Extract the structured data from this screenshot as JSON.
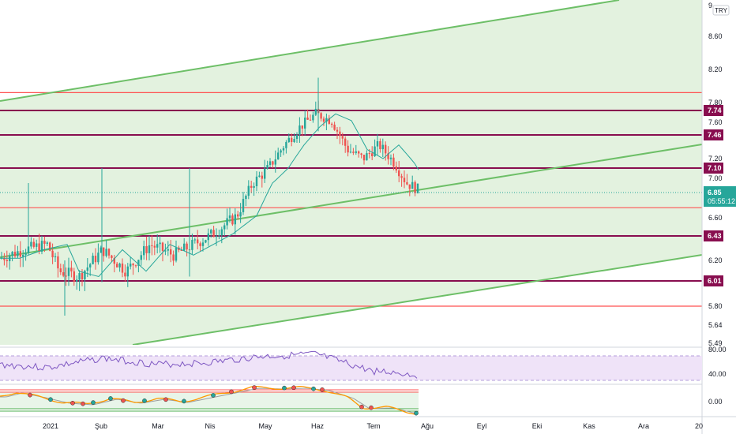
{
  "currency_badge": "TRY",
  "colors": {
    "channel_line": "#6dbf67",
    "channel_fill": "#e3f2df",
    "support_red": "#ff5252",
    "level_maroon": "#880e4f",
    "ma_line": "#26a69a",
    "candle_up": "#26a69a",
    "candle_down": "#ef5350",
    "price_badge": "#26a69a",
    "rsi_line": "#7e57c2",
    "rsi_band": "#efe3f8",
    "osc_band": "#e8f5e9",
    "osc_fast": "#ff9800",
    "osc_slow": "#9e9e9e"
  },
  "price_axis": {
    "top_label": "9.",
    "labels": [
      "8.60",
      "8.20",
      "7.80",
      "7.60",
      "7.20",
      "7.00",
      "6.60",
      "6.20",
      "5.80",
      "5.64",
      "5.49"
    ]
  },
  "levels": [
    {
      "label": "7.74",
      "value": 7.74
    },
    {
      "label": "7.46",
      "value": 7.46
    },
    {
      "label": "7.10",
      "value": 7.1
    },
    {
      "label": "6.43",
      "value": 6.43
    },
    {
      "label": "6.01",
      "value": 6.01
    }
  ],
  "support_lines": [
    7.92,
    6.7,
    5.8
  ],
  "last_price": {
    "value": "6.85",
    "countdown": "05:55:12"
  },
  "rsi_axis": {
    "labels": [
      "80.00",
      "40.00"
    ]
  },
  "osc_axis": {
    "labels": [
      "0.00"
    ]
  },
  "time_axis": {
    "labels": [
      "2021",
      "Şub",
      "Mar",
      "Nis",
      "May",
      "Haz",
      "Tem",
      "Ağu",
      "Eyl",
      "Eki",
      "Kas",
      "Ara",
      "20"
    ]
  },
  "chart_data": {
    "type": "line",
    "symbol_currency": "TRY",
    "y_scale": "log",
    "price_range": [
      5.49,
      9.0
    ],
    "horizontal_levels": [
      7.74,
      7.46,
      7.1,
      6.43,
      6.01
    ],
    "support_lines": [
      7.92,
      6.7,
      5.8
    ],
    "last_close": 6.85,
    "price_path": {
      "x": [
        "2021-01",
        "2021-02",
        "2021-03",
        "2021-04",
        "2021-05",
        "2021-06",
        "2021-07",
        "2021-07-end"
      ],
      "close": [
        6.3,
        6.15,
        6.2,
        6.55,
        7.05,
        7.7,
        7.2,
        6.85
      ]
    },
    "channel": {
      "upper_start": 7.85,
      "upper_end": 9.05,
      "mid_start": 6.25,
      "mid_end": 7.4,
      "lower_start": 5.4,
      "lower_end": 6.25
    },
    "indicators": {
      "rsi_levels": [
        80,
        40
      ],
      "oscillator_zero": 0
    }
  }
}
